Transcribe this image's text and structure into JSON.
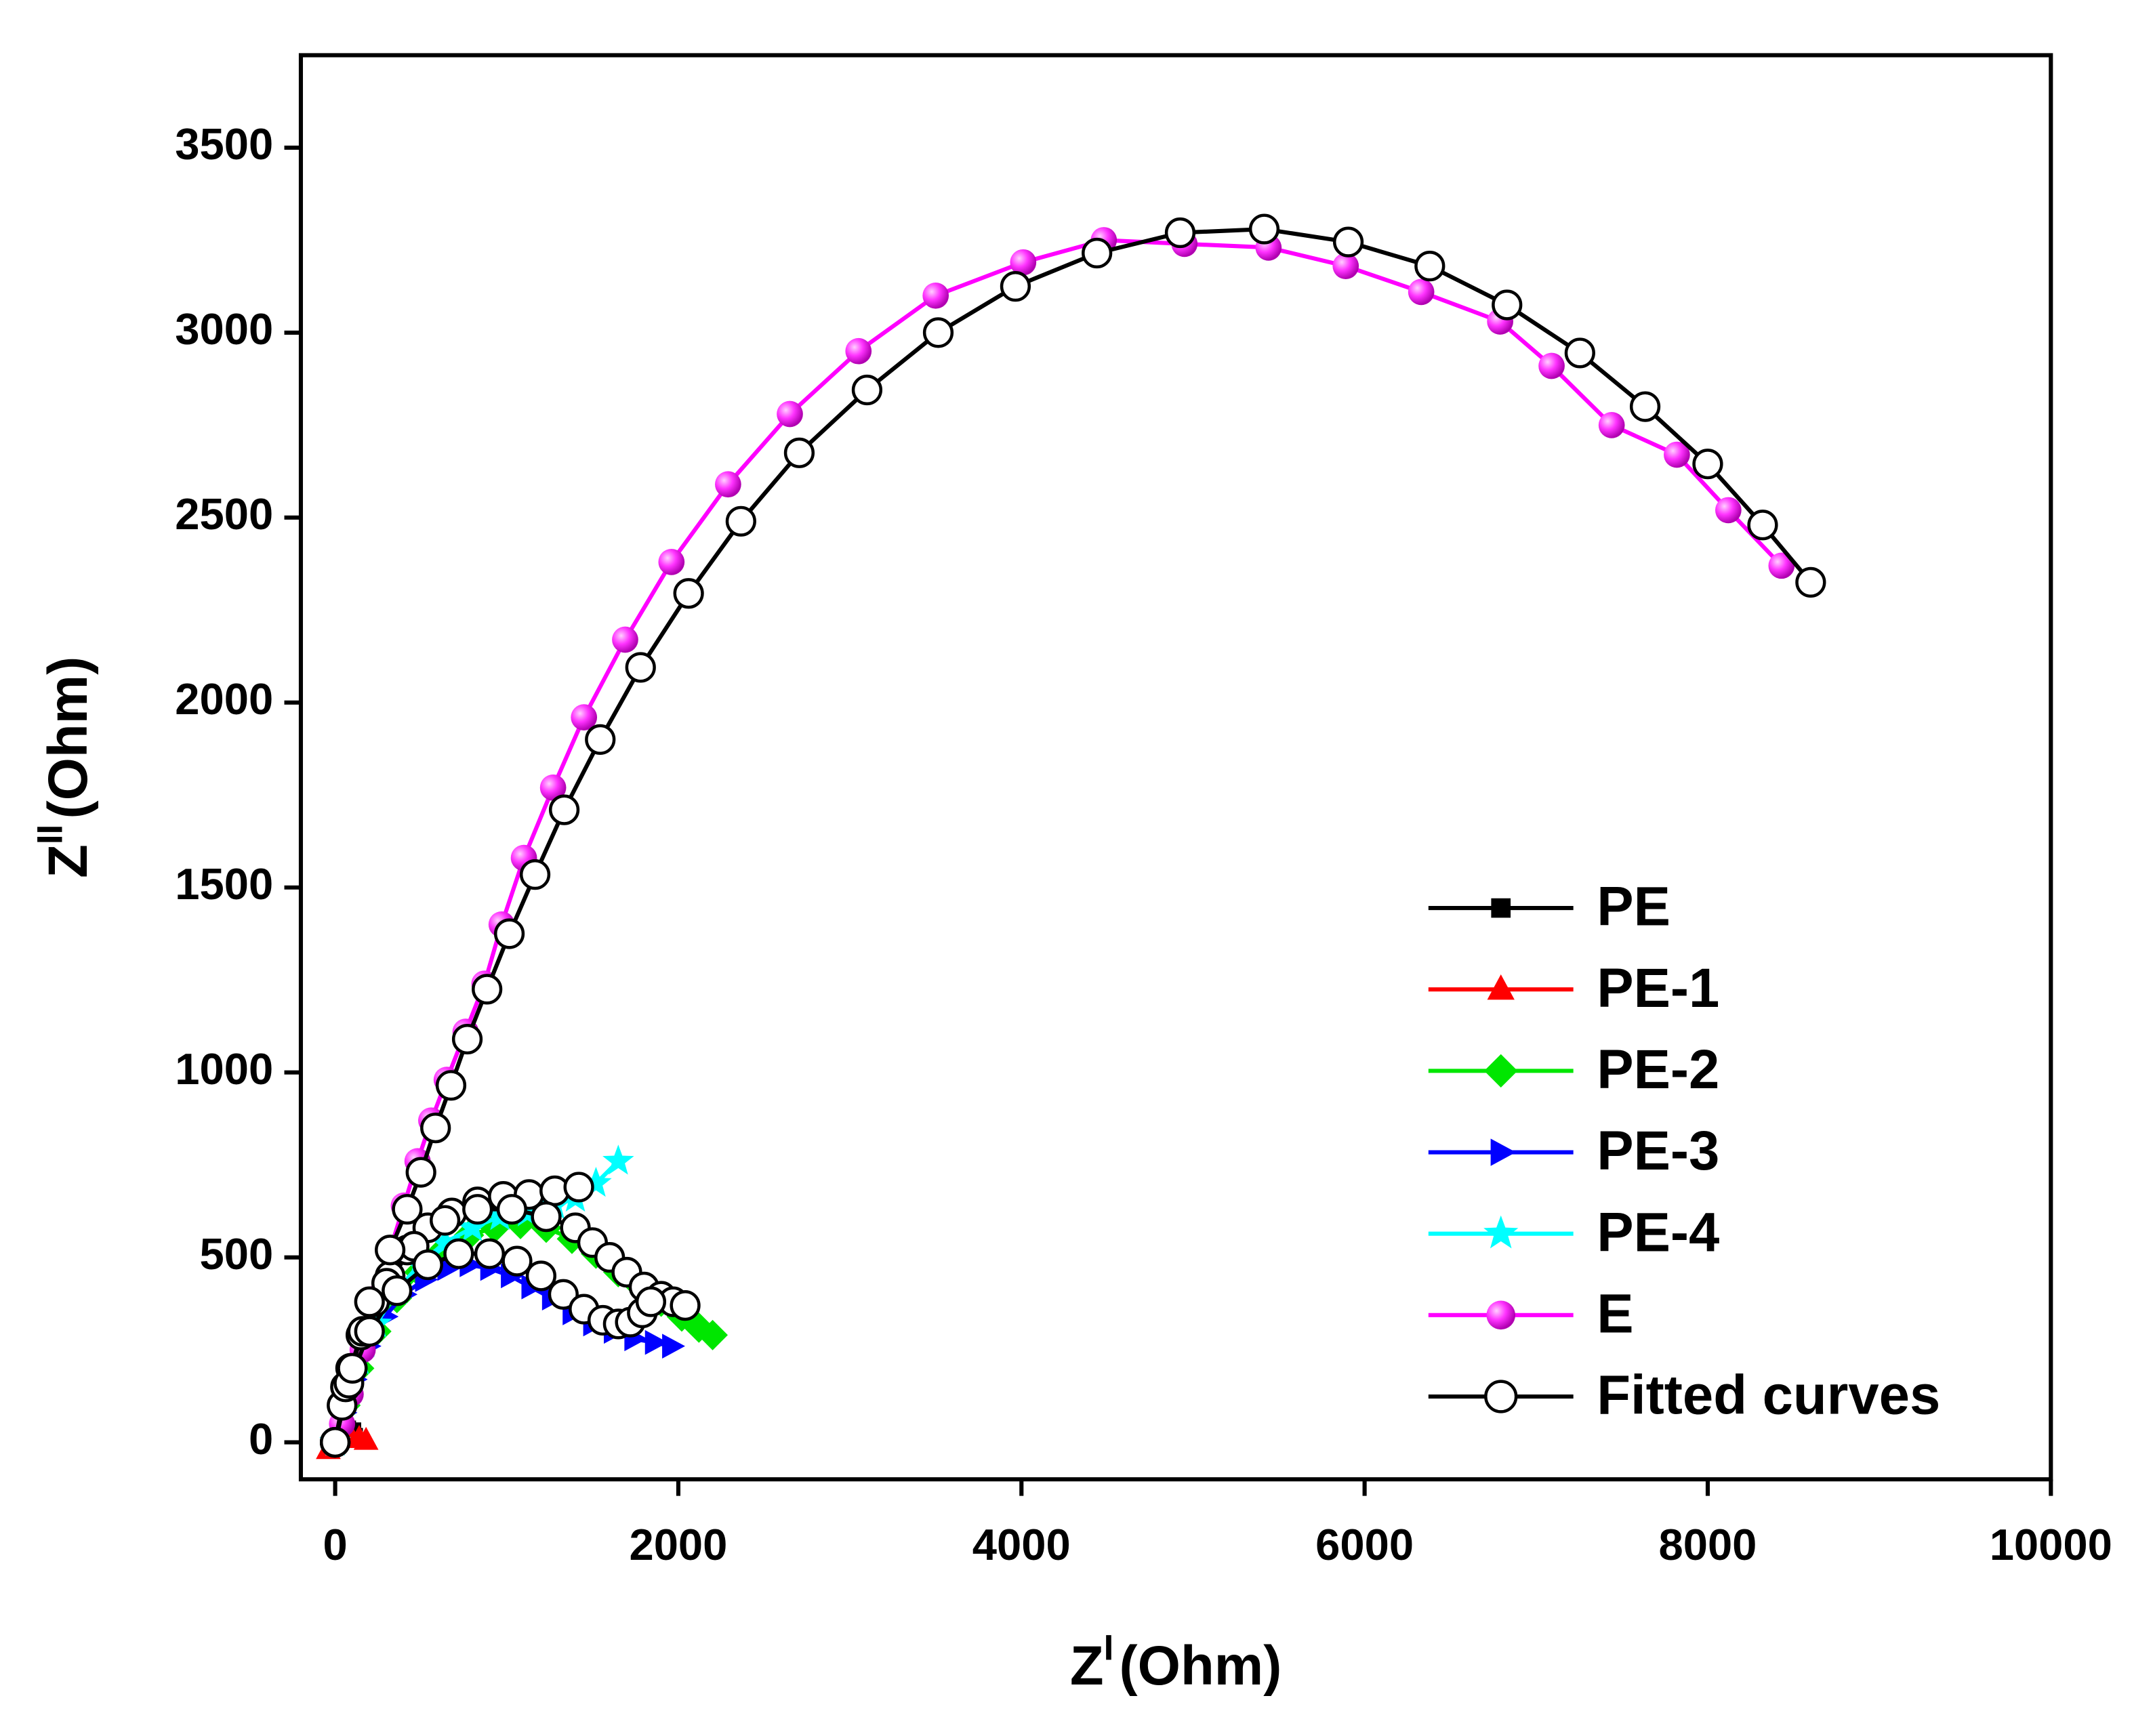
{
  "chart_data": {
    "type": "scatter-line",
    "xlabel": {
      "main": "Z",
      "sup": "I",
      "unit": "(Ohm)"
    },
    "ylabel": {
      "main": "Z",
      "sup": "II",
      "unit": "(Ohm)"
    },
    "xlim": [
      -200,
      10000
    ],
    "xticks": [
      0,
      2000,
      4000,
      6000,
      8000,
      10000
    ],
    "ylim": [
      -100,
      3750
    ],
    "yticks": [
      0,
      500,
      1000,
      1500,
      2000,
      2500,
      3000,
      3500
    ],
    "legend": "lower right",
    "series": [
      {
        "name": "PE",
        "color": "#000000",
        "marker": "square",
        "x": [
          -20,
          10,
          40,
          70,
          100,
          110
        ],
        "values": [
          -10,
          10,
          25,
          35,
          30,
          15
        ]
      },
      {
        "name": "PE-1",
        "color": "#ff0000",
        "marker": "triangle-up",
        "x": [
          -40,
          0,
          40,
          90,
          140,
          180
        ],
        "values": [
          -20,
          0,
          10,
          15,
          10,
          5
        ]
      },
      {
        "name": "PE-2",
        "color": "#00e600",
        "marker": "diamond",
        "x": [
          0,
          60,
          140,
          240,
          360,
          490,
          630,
          780,
          930,
          1080,
          1230,
          1380,
          1520,
          1650,
          1780,
          1900,
          2020,
          2120,
          2200
        ],
        "values": [
          0,
          100,
          200,
          300,
          390,
          460,
          520,
          560,
          580,
          590,
          580,
          550,
          510,
          460,
          420,
          380,
          340,
          310,
          290
        ]
      },
      {
        "name": "PE-3",
        "color": "#0000ff",
        "marker": "triangle-right",
        "x": [
          0,
          50,
          110,
          190,
          290,
          400,
          520,
          650,
          780,
          900,
          1020,
          1140,
          1260,
          1380,
          1500,
          1620,
          1740,
          1860,
          1960
        ],
        "values": [
          0,
          80,
          170,
          260,
          340,
          400,
          440,
          470,
          480,
          470,
          450,
          420,
          390,
          350,
          320,
          300,
          280,
          270,
          260
        ]
      },
      {
        "name": "PE-4",
        "color": "#00ffff",
        "marker": "star",
        "x": [
          0,
          60,
          140,
          240,
          360,
          490,
          640,
          800,
          960,
          1120,
          1280,
          1400,
          1520,
          1650
        ],
        "values": [
          0,
          110,
          220,
          320,
          410,
          480,
          540,
          580,
          610,
          620,
          640,
          660,
          700,
          760
        ]
      },
      {
        "name": "E",
        "color": "#ff00ff",
        "marker": "sphere",
        "x": [
          10,
          40,
          90,
          160,
          240,
          320,
          400,
          480,
          560,
          650,
          760,
          870,
          970,
          1100,
          1270,
          1450,
          1690,
          1960,
          2290,
          2650,
          3050,
          3500,
          4010,
          4480,
          4950,
          5440,
          5890,
          6330,
          6790,
          7090,
          7440,
          7820,
          8120,
          8430
        ],
        "values": [
          0,
          50,
          130,
          250,
          390,
          520,
          640,
          760,
          870,
          980,
          1110,
          1240,
          1400,
          1580,
          1770,
          1960,
          2170,
          2380,
          2590,
          2780,
          2950,
          3100,
          3190,
          3250,
          3240,
          3230,
          3180,
          3110,
          3030,
          2910,
          2750,
          2670,
          2520,
          2370
        ]
      },
      {
        "name": "Fitted curves",
        "color": "#000000",
        "marker": "open-circle",
        "x": [
          0,
          40,
          90,
          150,
          230,
          320,
          420,
          540,
          680,
          830,
          980,
          1130,
          1280,
          1420,
          null,
          0,
          60,
          160,
          300,
          460,
          640,
          830,
          1030,
          1230,
          1400,
          1500,
          1600,
          1700,
          1800,
          1900,
          1970,
          2040,
          null,
          0,
          80,
          200,
          360,
          540,
          720,
          900,
          1060,
          1200,
          1330,
          1450,
          1560,
          1650,
          1720,
          1790,
          1840,
          null,
          0,
          100,
          200,
          320,
          420,
          500,
          585,
          675,
          770,
          885,
          1015,
          1165,
          1335,
          1545,
          1780,
          2060,
          2365,
          2705,
          3100,
          3515,
          3965,
          4440,
          4925,
          5415,
          5905,
          6380,
          6830,
          7255,
          7635,
          8000,
          8320,
          8600
        ],
        "values": [
          0,
          100,
          200,
          290,
          380,
          450,
          520,
          580,
          620,
          650,
          665,
          670,
          680,
          690,
          null,
          0,
          150,
          300,
          430,
          530,
          600,
          630,
          630,
          610,
          580,
          540,
          500,
          460,
          420,
          395,
          380,
          370,
          null,
          0,
          160,
          300,
          410,
          480,
          510,
          510,
          490,
          450,
          400,
          360,
          330,
          320,
          325,
          350,
          380,
          null,
          0,
          200,
          380,
          520,
          630,
          730,
          850,
          965,
          1090,
          1225,
          1375,
          1535,
          1710,
          1900,
          2095,
          2295,
          2490,
          2675,
          2845,
          3000,
          3125,
          3215,
          3270,
          3280,
          3245,
          3180,
          3075,
          2945,
          2800,
          2645,
          2480,
          2325
        ]
      }
    ]
  }
}
